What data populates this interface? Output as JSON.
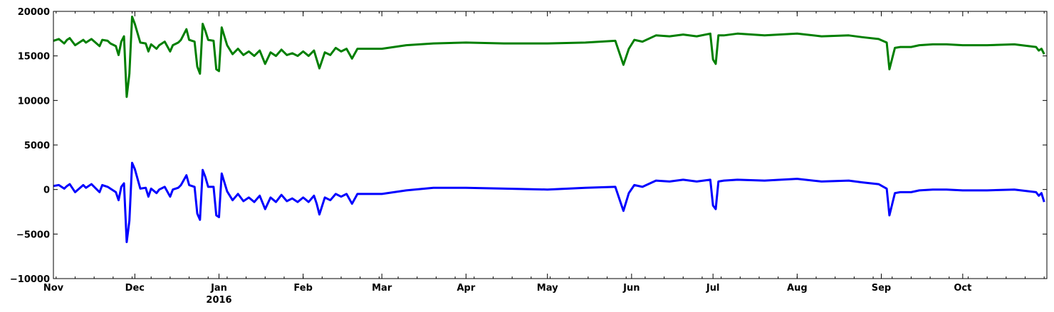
{
  "chart_data": {
    "type": "line",
    "x_unit": "date",
    "xlim": [
      "2015-11-01",
      "2016-10-31"
    ],
    "ylim": [
      -10000,
      20000
    ],
    "grid": false,
    "y_ticks": [
      -10000,
      -5000,
      0,
      5000,
      10000,
      15000,
      20000
    ],
    "y_tick_labels": [
      "−10000",
      "−5000",
      "0",
      "5000",
      "10000",
      "15000",
      "20000"
    ],
    "x_ticks": [
      {
        "date": "2015-11-01",
        "label": "Nov"
      },
      {
        "date": "2015-12-01",
        "label": "Dec"
      },
      {
        "date": "2016-01-01",
        "label": "Jan",
        "sublabel": "2016"
      },
      {
        "date": "2016-02-01",
        "label": "Feb"
      },
      {
        "date": "2016-03-01",
        "label": "Mar"
      },
      {
        "date": "2016-04-01",
        "label": "Apr"
      },
      {
        "date": "2016-05-01",
        "label": "May"
      },
      {
        "date": "2016-06-01",
        "label": "Jun"
      },
      {
        "date": "2016-07-01",
        "label": "Jul"
      },
      {
        "date": "2016-08-01",
        "label": "Aug"
      },
      {
        "date": "2016-09-01",
        "label": "Sep"
      },
      {
        "date": "2016-10-01",
        "label": "Oct"
      }
    ],
    "series": [
      {
        "color": "#007f00",
        "x": [
          "2015-11-01",
          "2015-11-03",
          "2015-11-05",
          "2015-11-06",
          "2015-11-07",
          "2015-11-09",
          "2015-11-12",
          "2015-11-13",
          "2015-11-15",
          "2015-11-18",
          "2015-11-19",
          "2015-11-21",
          "2015-11-22",
          "2015-11-24",
          "2015-11-25",
          "2015-11-26",
          "2015-11-27",
          "2015-11-28",
          "2015-11-29",
          "2015-11-30",
          "2015-12-01",
          "2015-12-03",
          "2015-12-05",
          "2015-12-06",
          "2015-12-07",
          "2015-12-09",
          "2015-12-10",
          "2015-12-12",
          "2015-12-14",
          "2015-12-15",
          "2015-12-17",
          "2015-12-18",
          "2015-12-20",
          "2015-12-21",
          "2015-12-23",
          "2015-12-24",
          "2015-12-25",
          "2015-12-26",
          "2015-12-27",
          "2015-12-28",
          "2015-12-30",
          "2015-12-31",
          "2016-01-01",
          "2016-01-02",
          "2016-01-04",
          "2016-01-06",
          "2016-01-08",
          "2016-01-10",
          "2016-01-12",
          "2016-01-14",
          "2016-01-16",
          "2016-01-18",
          "2016-01-20",
          "2016-01-22",
          "2016-01-24",
          "2016-01-26",
          "2016-01-28",
          "2016-01-30",
          "2016-02-01",
          "2016-02-03",
          "2016-02-05",
          "2016-02-06",
          "2016-02-07",
          "2016-02-09",
          "2016-02-11",
          "2016-02-13",
          "2016-02-15",
          "2016-02-17",
          "2016-02-19",
          "2016-02-21",
          "2016-02-25",
          "2016-03-01",
          "2016-03-10",
          "2016-03-20",
          "2016-04-01",
          "2016-04-15",
          "2016-05-01",
          "2016-05-15",
          "2016-05-26",
          "2016-05-28",
          "2016-05-29",
          "2016-05-31",
          "2016-06-02",
          "2016-06-05",
          "2016-06-10",
          "2016-06-15",
          "2016-06-20",
          "2016-06-25",
          "2016-06-30",
          "2016-07-01",
          "2016-07-02",
          "2016-07-03",
          "2016-07-05",
          "2016-07-10",
          "2016-07-20",
          "2016-08-01",
          "2016-08-10",
          "2016-08-20",
          "2016-08-25",
          "2016-08-31",
          "2016-09-03",
          "2016-09-04",
          "2016-09-06",
          "2016-09-08",
          "2016-09-12",
          "2016-09-15",
          "2016-09-20",
          "2016-09-25",
          "2016-10-01",
          "2016-10-10",
          "2016-10-20",
          "2016-10-28",
          "2016-10-29",
          "2016-10-30",
          "2016-10-31"
        ],
        "y": [
          16700,
          16900,
          16400,
          16800,
          17000,
          16200,
          16800,
          16500,
          16900,
          16100,
          16800,
          16700,
          16400,
          16100,
          15100,
          16600,
          17200,
          10400,
          13000,
          19400,
          18600,
          16500,
          16400,
          15500,
          16300,
          15800,
          16200,
          16600,
          15500,
          16200,
          16500,
          16800,
          18000,
          16800,
          16600,
          13800,
          13000,
          18600,
          17800,
          16800,
          16700,
          13500,
          13300,
          18200,
          16200,
          15200,
          15800,
          15100,
          15500,
          15000,
          15600,
          14100,
          15400,
          15000,
          15700,
          15100,
          15300,
          15000,
          15500,
          15000,
          15600,
          14600,
          13600,
          15400,
          15100,
          15900,
          15500,
          15800,
          14700,
          15800,
          15800,
          15800,
          16200,
          16400,
          16500,
          16400,
          16400,
          16500,
          16700,
          14900,
          14000,
          15800,
          16800,
          16600,
          17300,
          17200,
          17400,
          17200,
          17500,
          14600,
          14100,
          17300,
          17300,
          17500,
          17300,
          17500,
          17200,
          17300,
          17100,
          16900,
          16500,
          13500,
          15900,
          16000,
          16000,
          16200,
          16300,
          16300,
          16200,
          16200,
          16300,
          16000,
          15600,
          15800,
          15200
        ]
      },
      {
        "color": "#0000ff",
        "x": [
          "2015-11-01",
          "2015-11-03",
          "2015-11-05",
          "2015-11-06",
          "2015-11-07",
          "2015-11-09",
          "2015-11-12",
          "2015-11-13",
          "2015-11-15",
          "2015-11-18",
          "2015-11-19",
          "2015-11-21",
          "2015-11-22",
          "2015-11-24",
          "2015-11-25",
          "2015-11-26",
          "2015-11-27",
          "2015-11-28",
          "2015-11-29",
          "2015-11-30",
          "2015-12-01",
          "2015-12-03",
          "2015-12-05",
          "2015-12-06",
          "2015-12-07",
          "2015-12-09",
          "2015-12-10",
          "2015-12-12",
          "2015-12-14",
          "2015-12-15",
          "2015-12-17",
          "2015-12-18",
          "2015-12-20",
          "2015-12-21",
          "2015-12-23",
          "2015-12-24",
          "2015-12-25",
          "2015-12-26",
          "2015-12-27",
          "2015-12-28",
          "2015-12-30",
          "2015-12-31",
          "2016-01-01",
          "2016-01-02",
          "2016-01-04",
          "2016-01-06",
          "2016-01-08",
          "2016-01-10",
          "2016-01-12",
          "2016-01-14",
          "2016-01-16",
          "2016-01-18",
          "2016-01-20",
          "2016-01-22",
          "2016-01-24",
          "2016-01-26",
          "2016-01-28",
          "2016-01-30",
          "2016-02-01",
          "2016-02-03",
          "2016-02-05",
          "2016-02-06",
          "2016-02-07",
          "2016-02-09",
          "2016-02-11",
          "2016-02-13",
          "2016-02-15",
          "2016-02-17",
          "2016-02-19",
          "2016-02-21",
          "2016-02-25",
          "2016-03-01",
          "2016-03-10",
          "2016-03-20",
          "2016-04-01",
          "2016-04-15",
          "2016-05-01",
          "2016-05-15",
          "2016-05-26",
          "2016-05-28",
          "2016-05-29",
          "2016-05-31",
          "2016-06-02",
          "2016-06-05",
          "2016-06-10",
          "2016-06-15",
          "2016-06-20",
          "2016-06-25",
          "2016-06-30",
          "2016-07-01",
          "2016-07-02",
          "2016-07-03",
          "2016-07-05",
          "2016-07-10",
          "2016-07-20",
          "2016-08-01",
          "2016-08-10",
          "2016-08-20",
          "2016-08-25",
          "2016-08-31",
          "2016-09-03",
          "2016-09-04",
          "2016-09-06",
          "2016-09-08",
          "2016-09-12",
          "2016-09-15",
          "2016-09-20",
          "2016-09-25",
          "2016-10-01",
          "2016-10-10",
          "2016-10-20",
          "2016-10-28",
          "2016-10-29",
          "2016-10-30",
          "2016-10-31"
        ],
        "y": [
          400,
          500,
          100,
          400,
          600,
          -300,
          500,
          200,
          600,
          -300,
          500,
          300,
          100,
          -300,
          -1200,
          300,
          700,
          -5900,
          -3500,
          3000,
          2300,
          100,
          200,
          -800,
          100,
          -400,
          0,
          300,
          -800,
          0,
          200,
          500,
          1600,
          500,
          300,
          -2700,
          -3400,
          2200,
          1400,
          300,
          300,
          -2900,
          -3100,
          1800,
          -200,
          -1200,
          -500,
          -1300,
          -900,
          -1400,
          -700,
          -2200,
          -900,
          -1400,
          -600,
          -1300,
          -1000,
          -1400,
          -900,
          -1400,
          -700,
          -1600,
          -2800,
          -900,
          -1200,
          -500,
          -800,
          -500,
          -1600,
          -500,
          -500,
          -500,
          -100,
          200,
          200,
          100,
          0,
          200,
          300,
          -1500,
          -2400,
          -400,
          500,
          300,
          1000,
          900,
          1100,
          900,
          1100,
          -1800,
          -2200,
          900,
          1000,
          1100,
          1000,
          1200,
          900,
          1000,
          800,
          600,
          100,
          -2900,
          -400,
          -300,
          -300,
          -100,
          0,
          0,
          -100,
          -100,
          0,
          -300,
          -700,
          -400,
          -1400
        ]
      }
    ]
  }
}
